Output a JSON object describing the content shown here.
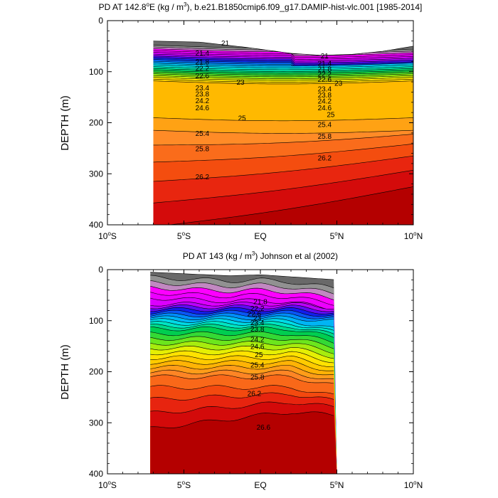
{
  "chart_data": [
    {
      "type": "contour",
      "title_main": "PD AT 142.8",
      "title_deg": "o",
      "title_e": "E (kg / m",
      "title_sup3": "3",
      "title_rest": "), b.e21.B1850cmip6.f09_g17.DAMIP-hist-vlc.001 [1985-2014]",
      "ylabel": "DEPTH (m)",
      "ylim": [
        0,
        400
      ],
      "xlim": [
        -10,
        10
      ],
      "y_ticks": [
        0,
        100,
        200,
        300,
        400
      ],
      "x_ticks": [
        {
          "value": -10,
          "num": "10",
          "deg": "o",
          "hemi": "S"
        },
        {
          "value": -5,
          "num": "5",
          "deg": "o",
          "hemi": "S"
        },
        {
          "value": 0,
          "num": "EQ",
          "deg": "",
          "hemi": ""
        },
        {
          "value": 5,
          "num": "5",
          "deg": "o",
          "hemi": "N"
        },
        {
          "value": 10,
          "num": "10",
          "deg": "o",
          "hemi": "N"
        }
      ],
      "data_extent": {
        "lat": [
          -7,
          10
        ]
      },
      "density_range": [
        20.8,
        26.6
      ],
      "top_profile": [
        [
          -7,
          40
        ],
        [
          -4,
          42
        ],
        [
          -1,
          52
        ],
        [
          2,
          64
        ],
        [
          4,
          68
        ],
        [
          6,
          66
        ],
        [
          8,
          60
        ],
        [
          10,
          50
        ]
      ],
      "contour_labels": [
        {
          "text": "21",
          "lat": -2.3,
          "depth": 43
        },
        {
          "text": "21.4",
          "lat": -3.8,
          "depth": 63
        },
        {
          "text": "21.8",
          "lat": -3.8,
          "depth": 80
        },
        {
          "text": "22.2",
          "lat": -3.8,
          "depth": 93
        },
        {
          "text": "22.6",
          "lat": -3.8,
          "depth": 107
        },
        {
          "text": "23",
          "lat": -1.3,
          "depth": 120
        },
        {
          "text": "23.4",
          "lat": -3.8,
          "depth": 131
        },
        {
          "text": "23.8",
          "lat": -3.8,
          "depth": 143
        },
        {
          "text": "24.2",
          "lat": -3.8,
          "depth": 156
        },
        {
          "text": "24.6",
          "lat": -3.8,
          "depth": 170
        },
        {
          "text": "25",
          "lat": -1.2,
          "depth": 190
        },
        {
          "text": "25.4",
          "lat": -3.8,
          "depth": 220
        },
        {
          "text": "25.8",
          "lat": -3.8,
          "depth": 250
        },
        {
          "text": "26.2",
          "lat": -3.8,
          "depth": 305
        },
        {
          "text": "21",
          "lat": 4.2,
          "depth": 68
        },
        {
          "text": "21.4",
          "lat": 4.2,
          "depth": 83
        },
        {
          "text": "21.8",
          "lat": 4.2,
          "depth": 94
        },
        {
          "text": "22.2",
          "lat": 4.2,
          "depth": 104
        },
        {
          "text": "22.6",
          "lat": 4.2,
          "depth": 114
        },
        {
          "text": "23",
          "lat": 5.1,
          "depth": 122
        },
        {
          "text": "23.4",
          "lat": 4.2,
          "depth": 133
        },
        {
          "text": "23.8",
          "lat": 4.2,
          "depth": 145
        },
        {
          "text": "24.2",
          "lat": 4.2,
          "depth": 157
        },
        {
          "text": "24.6",
          "lat": 4.2,
          "depth": 170
        },
        {
          "text": "25",
          "lat": 4.6,
          "depth": 183
        },
        {
          "text": "25.4",
          "lat": 4.2,
          "depth": 203
        },
        {
          "text": "25.8",
          "lat": 4.2,
          "depth": 226
        },
        {
          "text": "26.2",
          "lat": 4.2,
          "depth": 268
        }
      ]
    },
    {
      "type": "contour",
      "title": "PD AT 143 (kg / m",
      "title_sup3": "3",
      "title_rest": ") Johnson et al (2002)",
      "ylabel": "DEPTH (m)",
      "ylim": [
        0,
        400
      ],
      "xlim": [
        -10,
        10
      ],
      "y_ticks": [
        0,
        100,
        200,
        300,
        400
      ],
      "x_ticks": [
        {
          "value": -10,
          "num": "10",
          "deg": "o",
          "hemi": "S"
        },
        {
          "value": -5,
          "num": "5",
          "deg": "o",
          "hemi": "S"
        },
        {
          "value": 0,
          "num": "EQ",
          "deg": "",
          "hemi": ""
        },
        {
          "value": 5,
          "num": "5",
          "deg": "o",
          "hemi": "N"
        },
        {
          "value": 10,
          "num": "10",
          "deg": "o",
          "hemi": "N"
        }
      ],
      "data_extent": {
        "lat": [
          -7.2,
          5
        ]
      },
      "density_range": [
        20.8,
        26.8
      ],
      "top_profile": [
        [
          -7.2,
          5
        ],
        [
          -5,
          8
        ],
        [
          -2,
          12
        ],
        [
          0,
          10
        ],
        [
          2,
          14
        ],
        [
          4,
          18
        ],
        [
          5,
          20
        ]
      ],
      "contour_labels": [
        {
          "text": "21.8",
          "lat": 0.0,
          "depth": 62
        },
        {
          "text": "22.2",
          "lat": -0.2,
          "depth": 75
        },
        {
          "text": "22.6",
          "lat": -0.4,
          "depth": 86
        },
        {
          "text": "23",
          "lat": -0.2,
          "depth": 94
        },
        {
          "text": "23.4",
          "lat": -0.2,
          "depth": 103
        },
        {
          "text": "23.8",
          "lat": -0.2,
          "depth": 116
        },
        {
          "text": "24.2",
          "lat": -0.2,
          "depth": 136
        },
        {
          "text": "24.6",
          "lat": -0.2,
          "depth": 150
        },
        {
          "text": "25",
          "lat": -0.1,
          "depth": 166
        },
        {
          "text": "25.4",
          "lat": -0.2,
          "depth": 186
        },
        {
          "text": "25.8",
          "lat": -0.2,
          "depth": 210
        },
        {
          "text": "26.2",
          "lat": -0.4,
          "depth": 242
        },
        {
          "text": "26.6",
          "lat": 0.2,
          "depth": 308
        }
      ]
    }
  ]
}
